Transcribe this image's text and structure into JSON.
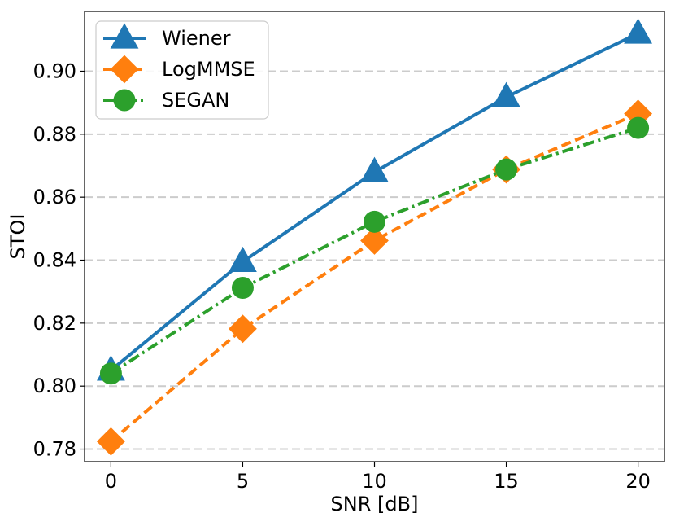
{
  "chart_data": {
    "type": "line",
    "title": "",
    "xlabel": "SNR [dB]",
    "ylabel": "STOI",
    "x": [
      0,
      5,
      10,
      15,
      20
    ],
    "xlim": [
      -1,
      21
    ],
    "ylim": [
      0.776,
      0.919
    ],
    "xticks": [
      "0",
      "5",
      "10",
      "15",
      "20"
    ],
    "yticks": [
      "0.78",
      "0.80",
      "0.82",
      "0.84",
      "0.86",
      "0.88",
      "0.90"
    ],
    "ytick_values": [
      0.78,
      0.8,
      0.82,
      0.84,
      0.86,
      0.88,
      0.9
    ],
    "grid": "horizontal dashed",
    "legend_position": "top-left",
    "series": [
      {
        "name": "Wiener",
        "values": [
          0.805,
          0.8395,
          0.868,
          0.8918,
          0.912
        ],
        "color": "#1f77b4",
        "marker": "triangle",
        "linestyle": "solid"
      },
      {
        "name": "LogMMSE",
        "values": [
          0.7824,
          0.8182,
          0.8462,
          0.8688,
          0.8865
        ],
        "color": "#ff7f0e",
        "marker": "diamond",
        "linestyle": "dashed"
      },
      {
        "name": "SEGAN",
        "values": [
          0.804,
          0.8312,
          0.8522,
          0.8688,
          0.882
        ],
        "color": "#2ca02c",
        "marker": "circle",
        "linestyle": "dashdot"
      }
    ]
  }
}
